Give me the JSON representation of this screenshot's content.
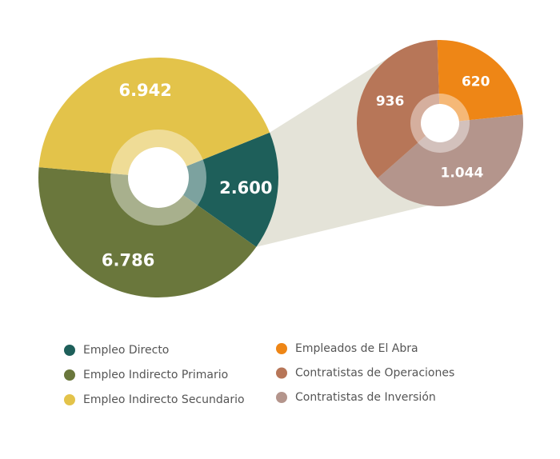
{
  "chart_data": [
    {
      "type": "pie",
      "title": "",
      "slices": [
        {
          "label": "Empleo Directo",
          "value": 2600,
          "display": "2.600",
          "color": "#1e5f5a"
        },
        {
          "label": "Empleo Indirecto Primario",
          "value": 6786,
          "display": "6.786",
          "color": "#6a773c"
        },
        {
          "label": "Empleo Indirecto Secundario",
          "value": 6942,
          "display": "6.942",
          "color": "#e3c34a"
        }
      ],
      "legend_position": "bottom-left"
    },
    {
      "type": "pie",
      "title": "",
      "breakdown_of": "Empleo Directo",
      "slices": [
        {
          "label": "Contratistas de Inversión",
          "value": 1044,
          "display": "1.044",
          "color": "#b4958c"
        },
        {
          "label": "Contratistas de Operaciones",
          "value": 936,
          "display": "936",
          "color": "#b77658"
        },
        {
          "label": "Empleados de El Abra",
          "value": 620,
          "display": "620",
          "color": "#ee8616"
        }
      ],
      "legend_position": "bottom-right"
    }
  ],
  "legend": {
    "left": [
      {
        "label": "Empleo Directo",
        "color": "#1e5f5a"
      },
      {
        "label": "Empleo Indirecto Primario",
        "color": "#6a773c"
      },
      {
        "label": "Empleo Indirecto Secundario",
        "color": "#e3c34a"
      }
    ],
    "right": [
      {
        "label": "Empleados de El Abra",
        "color": "#ee8616"
      },
      {
        "label": "Contratistas de Operaciones",
        "color": "#b77658"
      },
      {
        "label": "Contratistas de Inversión",
        "color": "#b4958c"
      }
    ]
  },
  "colors": {
    "connector": "#e4e3d8"
  }
}
